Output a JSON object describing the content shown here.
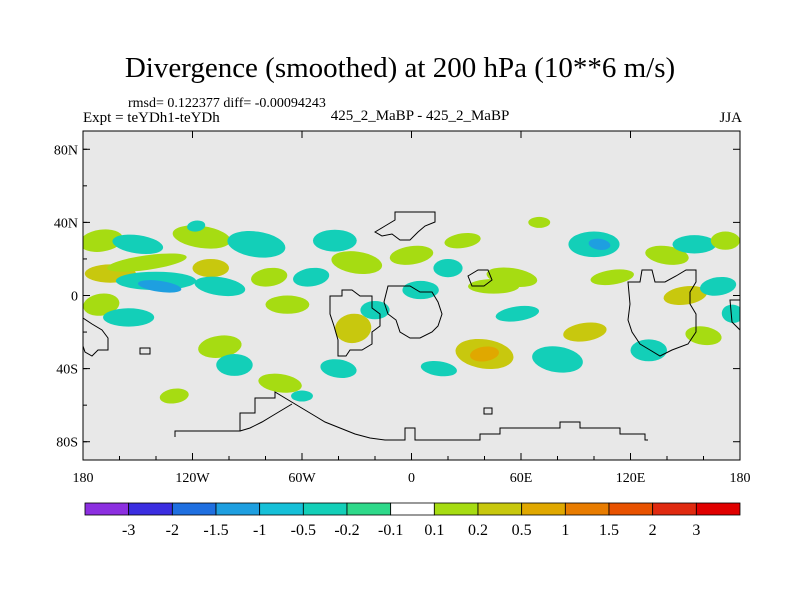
{
  "chart_data": {
    "type": "heatmap",
    "title": "Divergence (smoothed) at 200 hPa (10**6 m/s)",
    "stats": "rmsd= 0.122377 diff= -0.00094243",
    "experiment": "Expt = teYDh1-teYDh",
    "case_label": "425_2_MaBP - 425_2_MaBP",
    "season": "JJA",
    "xlim": [
      -180,
      180
    ],
    "ylim": [
      -90,
      90
    ],
    "x_ticks": [
      {
        "value": -180,
        "label": "180"
      },
      {
        "value": -120,
        "label": "120W"
      },
      {
        "value": -60,
        "label": "60W"
      },
      {
        "value": 0,
        "label": "0"
      },
      {
        "value": 60,
        "label": "60E"
      },
      {
        "value": 120,
        "label": "120E"
      },
      {
        "value": 180,
        "label": "180"
      }
    ],
    "y_ticks": [
      {
        "value": 80,
        "label": "80N"
      },
      {
        "value": 40,
        "label": "40N"
      },
      {
        "value": 0,
        "label": "0"
      },
      {
        "value": -40,
        "label": "40S"
      },
      {
        "value": -80,
        "label": "80S"
      }
    ],
    "colorbar": {
      "levels": [
        "-3",
        "-2",
        "-1.5",
        "-1",
        "-0.5",
        "-0.2",
        "-0.1",
        "0.1",
        "0.2",
        "0.5",
        "1",
        "1.5",
        "2",
        "3"
      ],
      "colors": [
        "#8c2fe0",
        "#3b2de0",
        "#1f6fe0",
        "#1e9fe0",
        "#16c0d8",
        "#13cfb8",
        "#2ed98a",
        "#e8e8e8",
        "#a6dc12",
        "#c8c80e",
        "#e0a800",
        "#e87c00",
        "#e85200",
        "#e02a10"
      ]
    },
    "background_color": "#e8e8e8",
    "anomalies": [
      {
        "lon": -170,
        "lat": 30,
        "rx": 12,
        "ry": 6,
        "value": 0.15
      },
      {
        "lon": -165,
        "lat": 12,
        "rx": 14,
        "ry": 5,
        "value": 0.3
      },
      {
        "lon": -150,
        "lat": 28,
        "rx": 14,
        "ry": 5,
        "value": -0.15
      },
      {
        "lon": -145,
        "lat": 18,
        "rx": 22,
        "ry": 4,
        "value": 0.2
      },
      {
        "lon": -140,
        "lat": 8,
        "rx": 22,
        "ry": 5,
        "value": -0.2
      },
      {
        "lon": -138,
        "lat": 5,
        "rx": 12,
        "ry": 3,
        "value": -0.4
      },
      {
        "lon": -170,
        "lat": -5,
        "rx": 10,
        "ry": 6,
        "value": 0.2
      },
      {
        "lon": -155,
        "lat": -12,
        "rx": 14,
        "ry": 5,
        "value": -0.15
      },
      {
        "lon": -115,
        "lat": 32,
        "rx": 16,
        "ry": 6,
        "value": 0.15
      },
      {
        "lon": -118,
        "lat": 38,
        "rx": 5,
        "ry": 3,
        "value": -0.3
      },
      {
        "lon": -110,
        "lat": 15,
        "rx": 10,
        "ry": 5,
        "value": 0.3
      },
      {
        "lon": -105,
        "lat": 5,
        "rx": 14,
        "ry": 5,
        "value": -0.15
      },
      {
        "lon": -105,
        "lat": -28,
        "rx": 12,
        "ry": 6,
        "value": 0.15
      },
      {
        "lon": -97,
        "lat": -38,
        "rx": 10,
        "ry": 6,
        "value": -0.2
      },
      {
        "lon": -85,
        "lat": 28,
        "rx": 16,
        "ry": 7,
        "value": -0.15
      },
      {
        "lon": -78,
        "lat": 10,
        "rx": 10,
        "ry": 5,
        "value": 0.2
      },
      {
        "lon": -68,
        "lat": -5,
        "rx": 12,
        "ry": 5,
        "value": 0.15
      },
      {
        "lon": -72,
        "lat": -48,
        "rx": 12,
        "ry": 5,
        "value": 0.2
      },
      {
        "lon": -55,
        "lat": 10,
        "rx": 10,
        "ry": 5,
        "value": -0.15
      },
      {
        "lon": -42,
        "lat": 30,
        "rx": 12,
        "ry": 6,
        "value": -0.15
      },
      {
        "lon": -30,
        "lat": 18,
        "rx": 14,
        "ry": 6,
        "value": 0.15
      },
      {
        "lon": -32,
        "lat": -18,
        "rx": 10,
        "ry": 8,
        "value": 0.3
      },
      {
        "lon": -20,
        "lat": -8,
        "rx": 8,
        "ry": 5,
        "value": -0.15
      },
      {
        "lon": -40,
        "lat": -40,
        "rx": 10,
        "ry": 5,
        "value": -0.2
      },
      {
        "lon": 0,
        "lat": 22,
        "rx": 12,
        "ry": 5,
        "value": 0.2
      },
      {
        "lon": 5,
        "lat": 3,
        "rx": 10,
        "ry": 5,
        "value": -0.15
      },
      {
        "lon": 15,
        "lat": -40,
        "rx": 10,
        "ry": 4,
        "value": -0.15
      },
      {
        "lon": 28,
        "lat": 30,
        "rx": 10,
        "ry": 4,
        "value": 0.15
      },
      {
        "lon": 20,
        "lat": 15,
        "rx": 8,
        "ry": 5,
        "value": -0.2
      },
      {
        "lon": 40,
        "lat": -32,
        "rx": 16,
        "ry": 8,
        "value": 0.3
      },
      {
        "lon": 40,
        "lat": -32,
        "rx": 8,
        "ry": 4,
        "value": 0.6
      },
      {
        "lon": 45,
        "lat": 5,
        "rx": 14,
        "ry": 4,
        "value": 0.2
      },
      {
        "lon": 55,
        "lat": 10,
        "rx": 14,
        "ry": 5,
        "value": 0.15
      },
      {
        "lon": 58,
        "lat": -10,
        "rx": 12,
        "ry": 4,
        "value": -0.2
      },
      {
        "lon": 70,
        "lat": 40,
        "rx": 6,
        "ry": 3,
        "value": 0.15
      },
      {
        "lon": 80,
        "lat": -35,
        "rx": 14,
        "ry": 7,
        "value": -0.15
      },
      {
        "lon": 95,
        "lat": -20,
        "rx": 12,
        "ry": 5,
        "value": 0.3
      },
      {
        "lon": 100,
        "lat": 28,
        "rx": 14,
        "ry": 7,
        "value": -0.2
      },
      {
        "lon": 103,
        "lat": 28,
        "rx": 6,
        "ry": 3,
        "value": -0.5
      },
      {
        "lon": 110,
        "lat": 10,
        "rx": 12,
        "ry": 4,
        "value": 0.15
      },
      {
        "lon": 130,
        "lat": -30,
        "rx": 10,
        "ry": 6,
        "value": -0.15
      },
      {
        "lon": 140,
        "lat": 22,
        "rx": 12,
        "ry": 5,
        "value": 0.2
      },
      {
        "lon": 150,
        "lat": 0,
        "rx": 12,
        "ry": 5,
        "value": 0.25
      },
      {
        "lon": 155,
        "lat": 28,
        "rx": 12,
        "ry": 5,
        "value": -0.15
      },
      {
        "lon": 160,
        "lat": -22,
        "rx": 10,
        "ry": 5,
        "value": 0.15
      },
      {
        "lon": 168,
        "lat": 5,
        "rx": 10,
        "ry": 5,
        "value": -0.2
      },
      {
        "lon": 172,
        "lat": 30,
        "rx": 8,
        "ry": 5,
        "value": 0.2
      },
      {
        "lon": 176,
        "lat": -10,
        "rx": 6,
        "ry": 5,
        "value": -0.15
      },
      {
        "lon": -130,
        "lat": -55,
        "rx": 8,
        "ry": 4,
        "value": 0.15
      },
      {
        "lon": -60,
        "lat": -55,
        "rx": 6,
        "ry": 3,
        "value": -0.15
      }
    ]
  }
}
